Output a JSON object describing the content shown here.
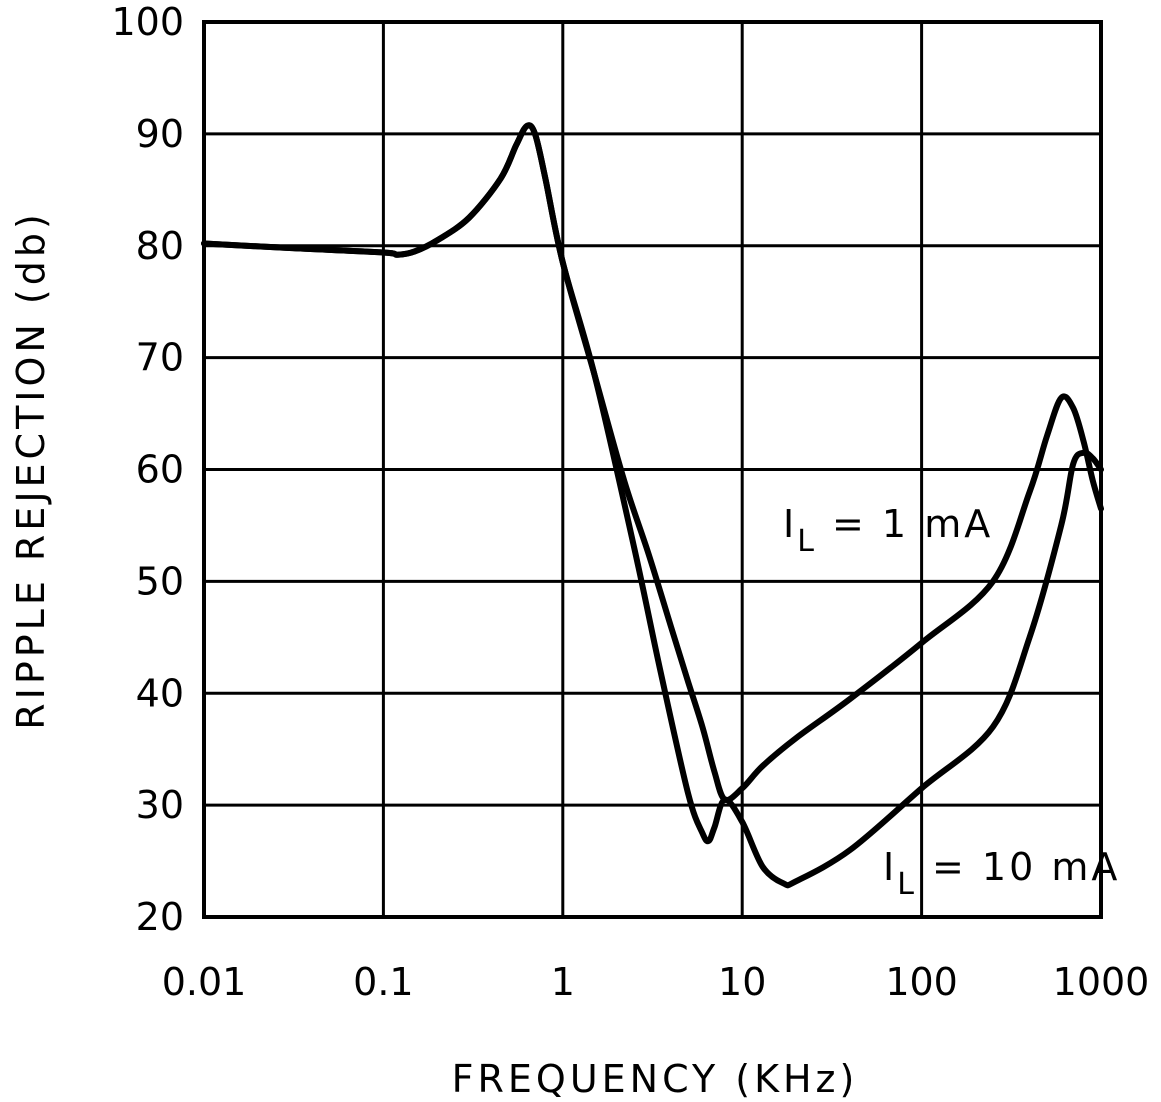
{
  "chart_data": {
    "type": "line",
    "title": "",
    "xlabel": "FREQUENCY (KHz)",
    "ylabel": "RIPPLE REJECTION (db)",
    "xscale": "log",
    "xlim": [
      0.01,
      1000
    ],
    "ylim": [
      20,
      100
    ],
    "grid": true,
    "x_ticks": [
      0.01,
      0.1,
      1,
      10,
      100,
      1000
    ],
    "x_tick_labels": [
      "0.01",
      "0.1",
      "1",
      "10",
      "100",
      "1000"
    ],
    "y_ticks": [
      20,
      30,
      40,
      50,
      60,
      70,
      80,
      90,
      100
    ],
    "y_tick_labels": [
      "20",
      "30",
      "40",
      "50",
      "60",
      "70",
      "80",
      "90",
      "100"
    ],
    "series": [
      {
        "label_main": "I",
        "label_sub": "L",
        "label_rest": " = 1 mA",
        "points": [
          [
            0.01,
            80.2
          ],
          [
            0.03,
            79.8
          ],
          [
            0.1,
            79.4
          ],
          [
            0.12,
            79.2
          ],
          [
            0.15,
            79.5
          ],
          [
            0.2,
            80.5
          ],
          [
            0.3,
            82.5
          ],
          [
            0.45,
            86
          ],
          [
            0.55,
            89
          ],
          [
            0.63,
            90.7
          ],
          [
            0.7,
            90
          ],
          [
            0.8,
            86
          ],
          [
            1,
            78.5
          ],
          [
            1.5,
            68.5
          ],
          [
            2.2,
            59
          ],
          [
            3,
            52.5
          ],
          [
            4,
            46
          ],
          [
            5,
            41
          ],
          [
            6,
            37
          ],
          [
            7,
            33
          ],
          [
            8,
            30.5
          ],
          [
            10,
            31.5
          ],
          [
            13,
            33.5
          ],
          [
            20,
            36
          ],
          [
            40,
            39.5
          ],
          [
            100,
            44.5
          ],
          [
            250,
            50
          ],
          [
            400,
            58
          ],
          [
            500,
            63
          ],
          [
            600,
            66.4
          ],
          [
            700,
            65.5
          ],
          [
            800,
            62.5
          ],
          [
            900,
            59
          ],
          [
            1000,
            56.5
          ]
        ]
      },
      {
        "label_main": "I",
        "label_sub": "L",
        "label_rest": " = 10 mA",
        "points": [
          [
            0.01,
            80.2
          ],
          [
            0.03,
            79.8
          ],
          [
            0.1,
            79.4
          ],
          [
            0.12,
            79.2
          ],
          [
            0.15,
            79.5
          ],
          [
            0.2,
            80.5
          ],
          [
            0.3,
            82.5
          ],
          [
            0.45,
            86
          ],
          [
            0.55,
            89
          ],
          [
            0.63,
            90.7
          ],
          [
            0.7,
            90
          ],
          [
            0.8,
            86
          ],
          [
            1,
            78.5
          ],
          [
            1.5,
            68.5
          ],
          [
            2.5,
            53
          ],
          [
            3.5,
            42
          ],
          [
            5,
            31
          ],
          [
            6,
            27.5
          ],
          [
            6.5,
            26.8
          ],
          [
            7,
            28
          ],
          [
            8,
            30.5
          ],
          [
            10,
            28.5
          ],
          [
            13,
            24.5
          ],
          [
            17,
            23
          ],
          [
            20,
            23.2
          ],
          [
            40,
            26
          ],
          [
            100,
            31.5
          ],
          [
            250,
            37
          ],
          [
            400,
            45
          ],
          [
            600,
            55
          ],
          [
            700,
            60.5
          ],
          [
            800,
            61.5
          ],
          [
            900,
            61
          ],
          [
            1000,
            60
          ]
        ]
      }
    ]
  }
}
